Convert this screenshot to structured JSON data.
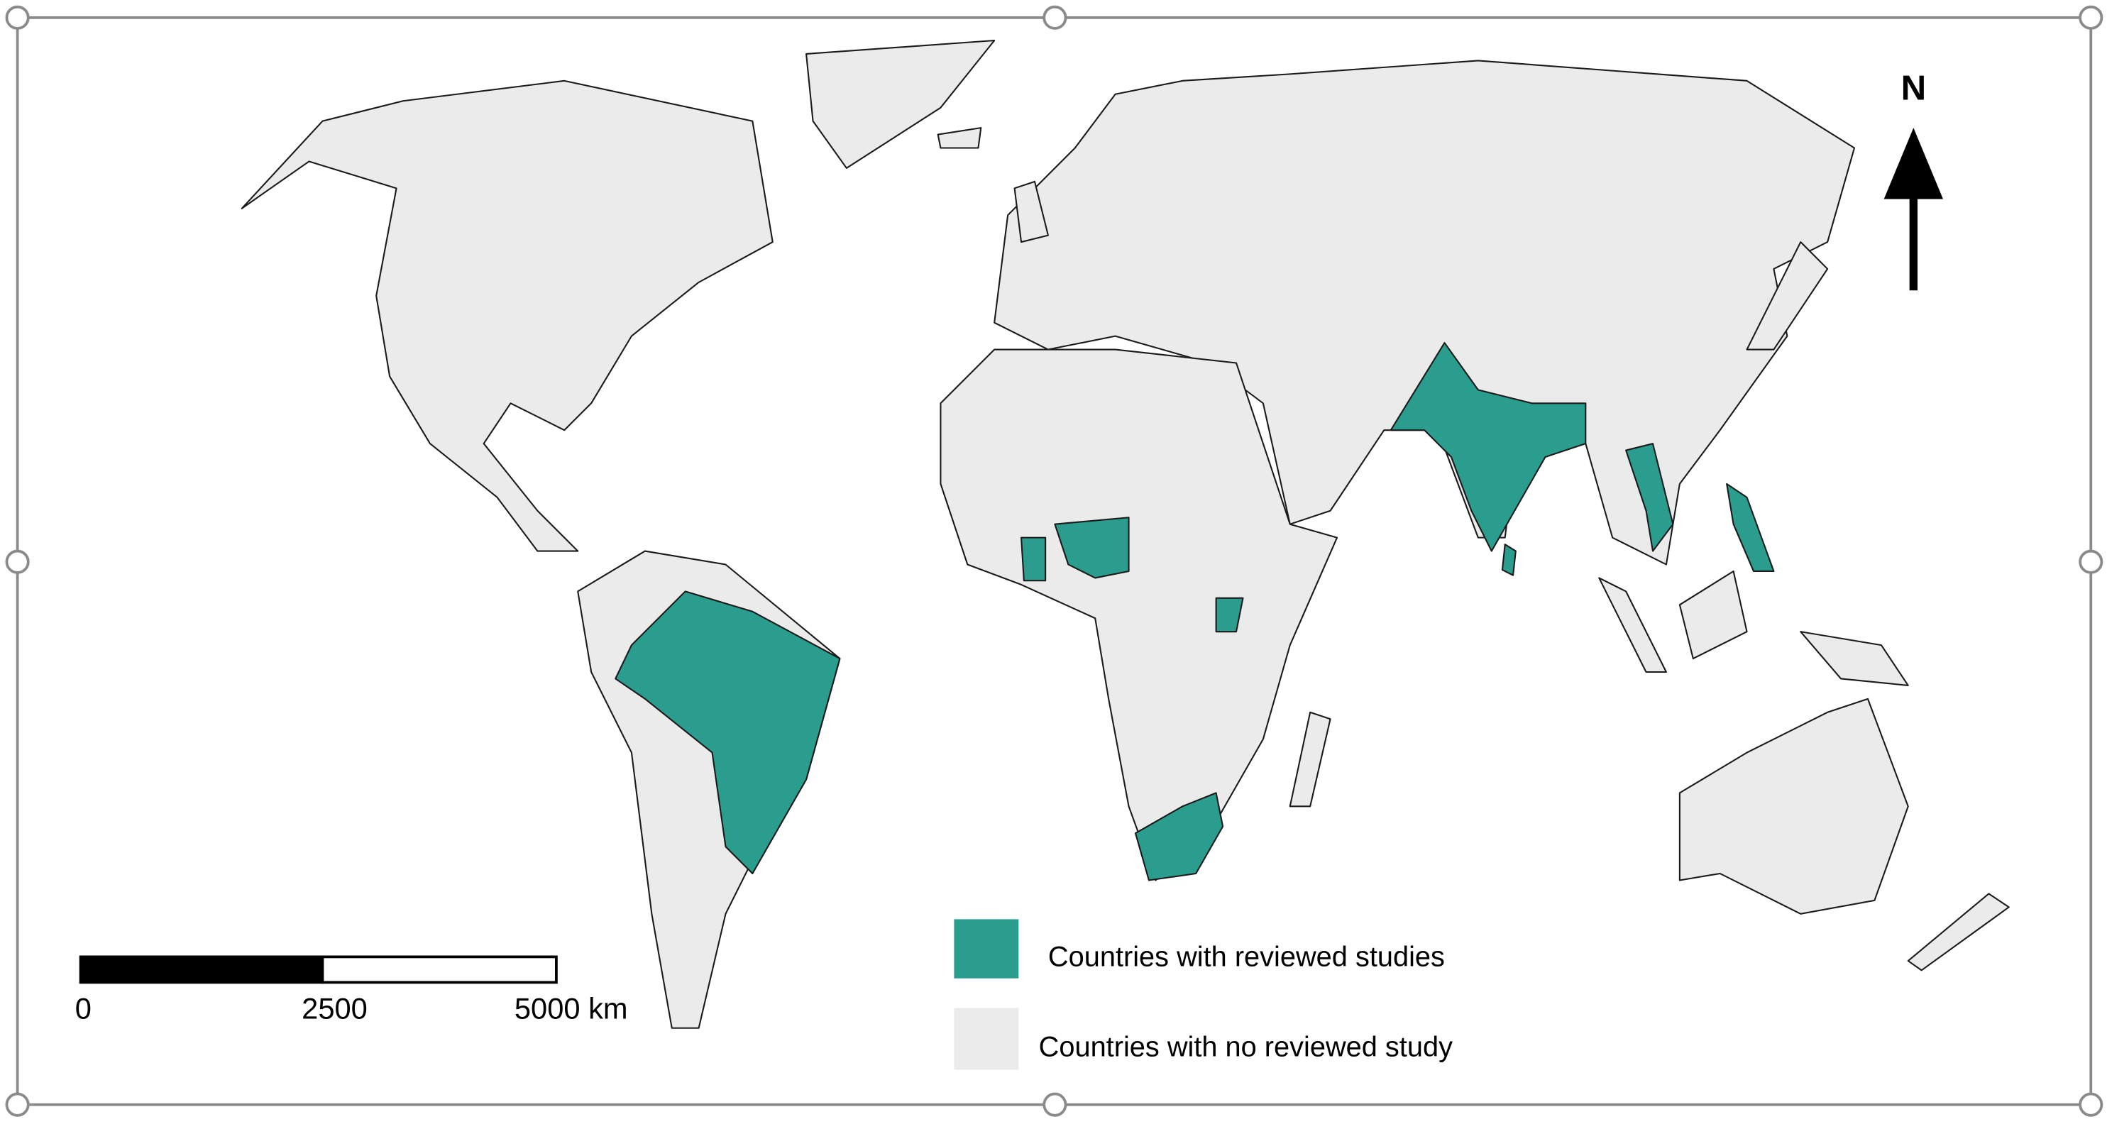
{
  "legend": {
    "items": [
      {
        "label": "Countries with reviewed studies",
        "color": "#2a9d8e"
      },
      {
        "label": "Countries with no reviewed study",
        "color": "#ebebeb"
      }
    ]
  },
  "scale_bar": {
    "labels": [
      "0",
      "2500",
      "5000 km"
    ]
  },
  "north_arrow": {
    "label": "N"
  }
}
